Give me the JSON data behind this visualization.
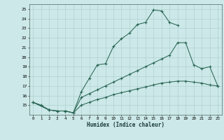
{
  "xlabel": "Humidex (Indice chaleur)",
  "bg_color": "#cce8e8",
  "grid_color": "#aacccc",
  "line_color": "#2a6655",
  "xlim": [
    -0.5,
    23.5
  ],
  "ylim": [
    14,
    25.5
  ],
  "xticks": [
    0,
    1,
    2,
    3,
    4,
    5,
    6,
    7,
    8,
    9,
    10,
    11,
    12,
    13,
    14,
    15,
    16,
    17,
    18,
    19,
    20,
    21,
    22,
    23
  ],
  "yticks": [
    15,
    16,
    17,
    18,
    19,
    20,
    21,
    22,
    23,
    24,
    25
  ],
  "line1_x": [
    0,
    1,
    2,
    3,
    4,
    5,
    6,
    7,
    8,
    9,
    10,
    11,
    12,
    13,
    14,
    15,
    16,
    17,
    18
  ],
  "line1_y": [
    15.3,
    15.0,
    14.5,
    14.4,
    14.4,
    14.2,
    16.4,
    17.8,
    19.2,
    19.3,
    21.1,
    21.9,
    22.5,
    23.4,
    23.6,
    24.9,
    24.8,
    23.6,
    23.3
  ],
  "line2_x": [
    0,
    2,
    3,
    4,
    5,
    6,
    7,
    8,
    9,
    10,
    11,
    12,
    13,
    14,
    15,
    16,
    17,
    18,
    19,
    20,
    21,
    22,
    23
  ],
  "line2_y": [
    15.3,
    14.5,
    14.4,
    14.4,
    14.2,
    15.8,
    16.2,
    16.6,
    17.0,
    17.4,
    17.8,
    18.2,
    18.6,
    19.0,
    19.4,
    19.8,
    20.2,
    21.5,
    21.5,
    19.2,
    18.8,
    19.0,
    17.0
  ],
  "line3_x": [
    0,
    2,
    3,
    4,
    5,
    6,
    7,
    8,
    9,
    10,
    11,
    12,
    13,
    14,
    15,
    16,
    17,
    18,
    19,
    20,
    21,
    22,
    23
  ],
  "line3_y": [
    15.3,
    14.5,
    14.4,
    14.4,
    14.2,
    15.0,
    15.3,
    15.6,
    15.8,
    16.1,
    16.3,
    16.5,
    16.7,
    16.9,
    17.1,
    17.3,
    17.4,
    17.5,
    17.5,
    17.4,
    17.3,
    17.1,
    17.0
  ]
}
